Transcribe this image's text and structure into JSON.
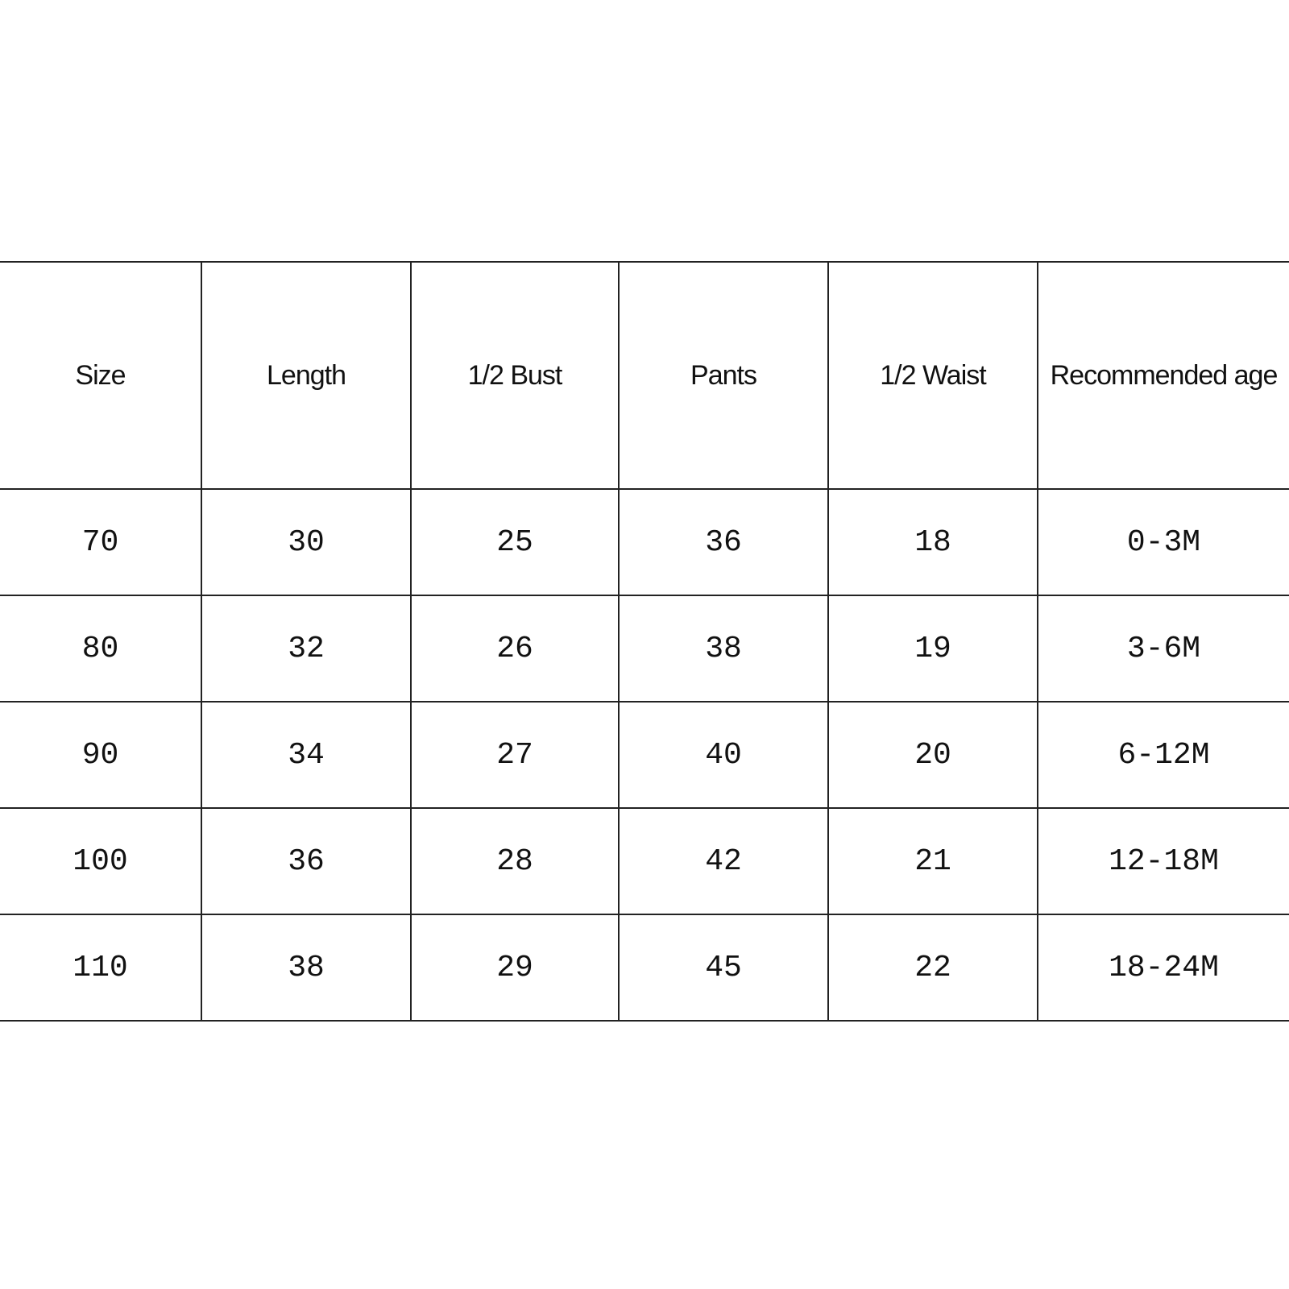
{
  "table": {
    "headers": [
      "Size",
      "Length",
      "1/2 Bust",
      "Pants",
      "1/2 Waist",
      "Recommended age"
    ],
    "rows": [
      [
        "70",
        "30",
        "25",
        "36",
        "18",
        "0-3M"
      ],
      [
        "80",
        "32",
        "26",
        "38",
        "19",
        "3-6M"
      ],
      [
        "90",
        "34",
        "27",
        "40",
        "20",
        "6-12M"
      ],
      [
        "100",
        "36",
        "28",
        "42",
        "21",
        "12-18M"
      ],
      [
        "110",
        "38",
        "29",
        "45",
        "22",
        "18-24M"
      ]
    ]
  }
}
